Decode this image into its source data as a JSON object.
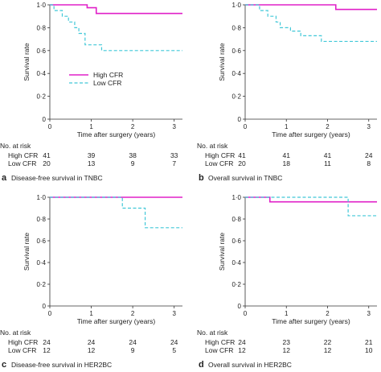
{
  "colors": {
    "high_cfr": "#e020c8",
    "low_cfr": "#40c8d8"
  },
  "shared": {
    "ylabel": "Survival rate",
    "xlabel": "Time after surgery (years)",
    "risk_header": "No. at risk",
    "yticks": [
      "0",
      "0·2",
      "0·4",
      "0·6",
      "0·8",
      "1·0"
    ],
    "xticks": [
      "0",
      "1",
      "2",
      "3"
    ]
  },
  "legend": {
    "high": "High CFR",
    "low": "Low CFR",
    "placement": "panel a, center-left"
  },
  "chart_data": [
    {
      "type": "line",
      "letter": "a",
      "caption": "Disease-free survival in TNBC",
      "xlabel": "Time after surgery (years)",
      "ylabel": "Survival rate",
      "xlim": [
        0,
        3.2
      ],
      "ylim": [
        0,
        1
      ],
      "step": true,
      "series": [
        {
          "name": "High CFR",
          "dash": false,
          "x": [
            0,
            0.9,
            1.12,
            3.2
          ],
          "y": [
            1.0,
            0.975,
            0.925,
            0.925
          ]
        },
        {
          "name": "Low CFR",
          "dash": true,
          "x": [
            0,
            0.1,
            0.3,
            0.45,
            0.6,
            0.7,
            0.85,
            1.25,
            3.2
          ],
          "y": [
            1.0,
            0.95,
            0.9,
            0.85,
            0.8,
            0.75,
            0.65,
            0.6,
            0.6
          ]
        }
      ],
      "risk": {
        "x": [
          "0",
          "1",
          "2",
          "3"
        ],
        "rows": [
          {
            "label": "High CFR",
            "values": [
              "41",
              "39",
              "38",
              "33"
            ]
          },
          {
            "label": "Low CFR",
            "values": [
              "20",
              "13",
              "9",
              "7"
            ]
          }
        ]
      }
    },
    {
      "type": "line",
      "letter": "b",
      "caption": "Overall survival in TNBC",
      "xlabel": "Time after surgery (years)",
      "ylabel": "Survival rate",
      "xlim": [
        0,
        3.2
      ],
      "ylim": [
        0,
        1
      ],
      "step": true,
      "series": [
        {
          "name": "High CFR",
          "dash": false,
          "x": [
            0,
            2.2,
            3.2
          ],
          "y": [
            1.0,
            0.96,
            0.96
          ]
        },
        {
          "name": "Low CFR",
          "dash": true,
          "x": [
            0,
            0.35,
            0.55,
            0.75,
            0.85,
            1.1,
            1.35,
            1.85,
            3.2
          ],
          "y": [
            1.0,
            0.95,
            0.9,
            0.85,
            0.8,
            0.77,
            0.73,
            0.68,
            0.68
          ]
        }
      ],
      "risk": {
        "x": [
          "0",
          "1",
          "2",
          "3"
        ],
        "rows": [
          {
            "label": "High CFR",
            "values": [
              "41",
              "41",
              "41",
              "24"
            ]
          },
          {
            "label": "Low CFR",
            "values": [
              "20",
              "18",
              "11",
              "8"
            ]
          }
        ]
      }
    },
    {
      "type": "line",
      "letter": "c",
      "caption": "Disease-free survival in HER2BC",
      "xlabel": "Time after surgery (years)",
      "ylabel": "Survival rate",
      "xlim": [
        0,
        3.2
      ],
      "ylim": [
        0,
        1
      ],
      "step": true,
      "series": [
        {
          "name": "High CFR",
          "dash": false,
          "x": [
            0,
            3.2
          ],
          "y": [
            1.0,
            1.0
          ]
        },
        {
          "name": "Low CFR",
          "dash": true,
          "x": [
            0,
            1.75,
            2.3,
            3.2
          ],
          "y": [
            1.0,
            0.9,
            0.72,
            0.72
          ]
        }
      ],
      "risk": {
        "x": [
          "0",
          "1",
          "2",
          "3"
        ],
        "rows": [
          {
            "label": "High CFR",
            "values": [
              "24",
              "24",
              "24",
              "24"
            ]
          },
          {
            "label": "Low CFR",
            "values": [
              "12",
              "12",
              "9",
              "5"
            ]
          }
        ]
      }
    },
    {
      "type": "line",
      "letter": "d",
      "caption": "Overall survival in HER2BC",
      "xlabel": "Time after surgery (years)",
      "ylabel": "Survival rate",
      "xlim": [
        0,
        3.2
      ],
      "ylim": [
        0,
        1
      ],
      "step": true,
      "series": [
        {
          "name": "High CFR",
          "dash": false,
          "x": [
            0,
            0.6,
            3.2
          ],
          "y": [
            1.0,
            0.958,
            0.958
          ]
        },
        {
          "name": "Low CFR",
          "dash": true,
          "x": [
            0,
            2.5,
            3.2
          ],
          "y": [
            1.0,
            0.83,
            0.83
          ]
        }
      ],
      "risk": {
        "x": [
          "0",
          "1",
          "2",
          "3"
        ],
        "rows": [
          {
            "label": "High CFR",
            "values": [
              "24",
              "23",
              "22",
              "21"
            ]
          },
          {
            "label": "Low CFR",
            "values": [
              "12",
              "12",
              "12",
              "10"
            ]
          }
        ]
      }
    }
  ]
}
